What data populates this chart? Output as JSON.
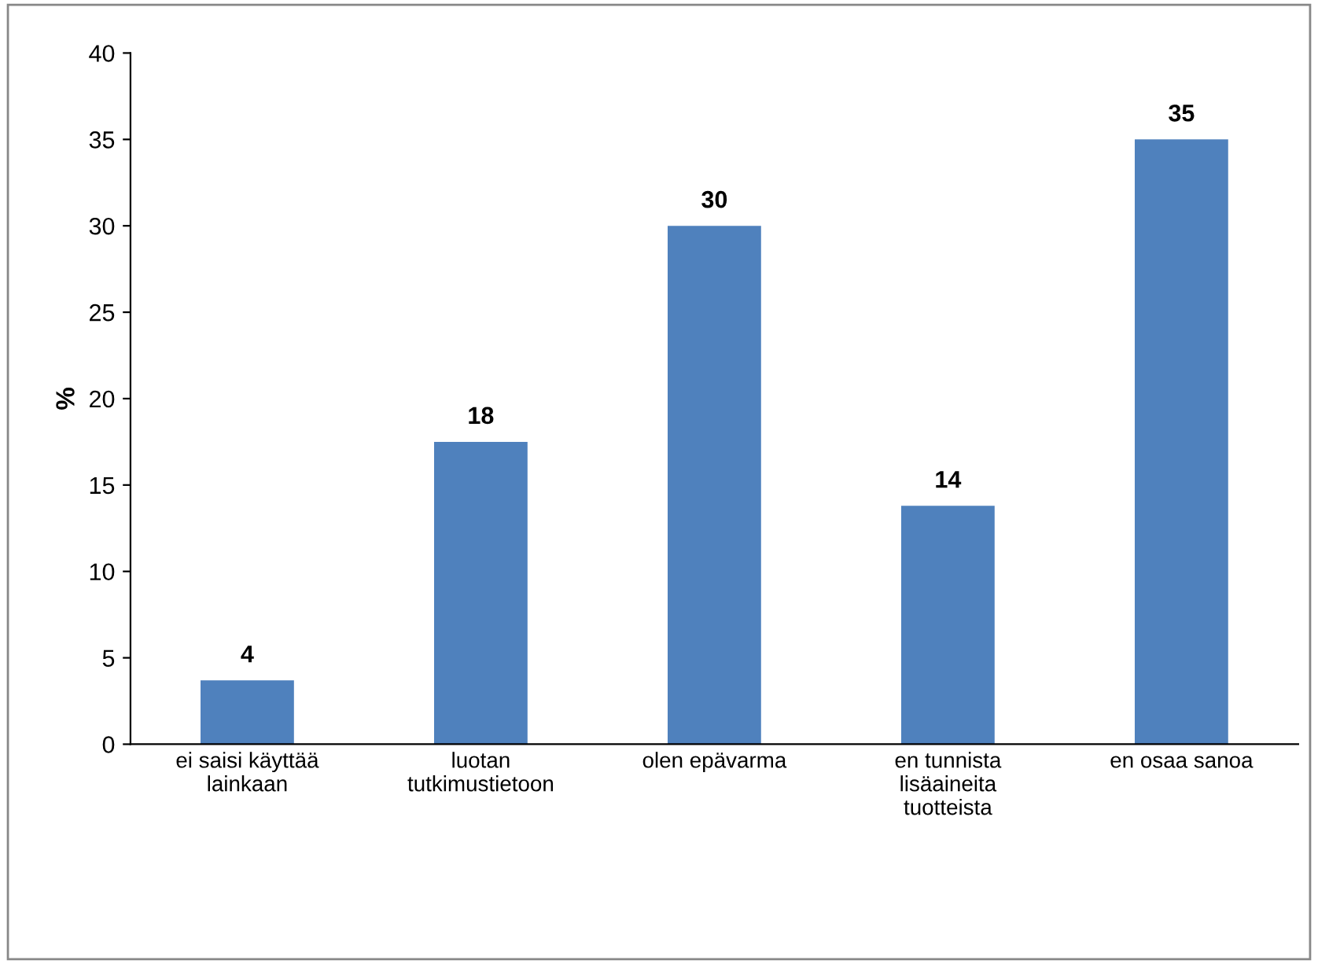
{
  "chart_data": {
    "type": "bar",
    "ylabel": "%",
    "categories": [
      "ei saisi käyttää\nlainkaan",
      "luotan\ntutkimustietoon",
      "olen epävarma",
      "en tunnista\nlisäaineita\ntuotteista",
      "en osaa sanoa"
    ],
    "values": [
      3.7,
      17.5,
      30,
      13.8,
      35
    ],
    "value_labels": [
      "4",
      "18",
      "30",
      "14",
      "35"
    ],
    "color": "#4f81bd",
    "ylim": [
      0,
      40
    ],
    "yticks": [
      0,
      5,
      10,
      15,
      20,
      25,
      30,
      35,
      40
    ],
    "grid": false,
    "legend": false
  }
}
